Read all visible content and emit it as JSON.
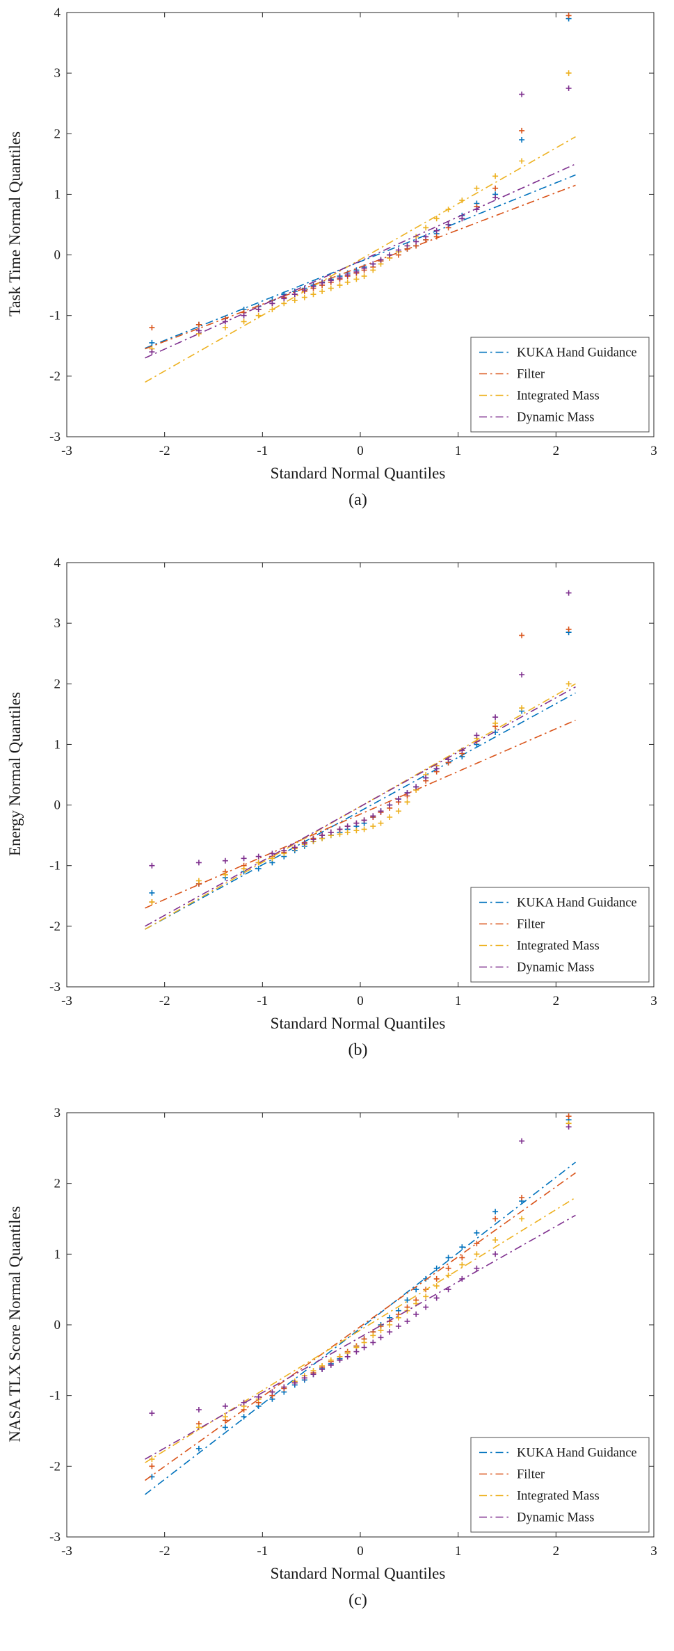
{
  "page": {
    "background": "#ffffff",
    "text_color": "#1a1a1a",
    "axis_color": "#262626"
  },
  "legend": {
    "labels": [
      "KUKA Hand Guidance",
      "Filter",
      "Integrated Mass",
      "Dynamic Mass"
    ],
    "position": "bottom-right"
  },
  "colors": {
    "kuka_hand_guidance": "#0072BD",
    "filter": "#D95319",
    "integrated_mass": "#EDB120",
    "dynamic_mass": "#7E2F8E"
  },
  "chart_data": [
    {
      "id": "a",
      "type": "scatter",
      "caption": "(a)",
      "xlabel": "Standard Normal Quantiles",
      "ylabel": "Task Time Normal Quantiles",
      "xlim": [
        -3,
        3
      ],
      "ylim": [
        -3,
        4
      ],
      "xticks": [
        -3,
        -2,
        -1,
        0,
        1,
        2,
        3
      ],
      "yticks": [
        -3,
        -2,
        -1,
        0,
        1,
        2,
        3,
        4
      ],
      "grid": false,
      "marker": "+",
      "line_style": "dash-dot",
      "legend_position": "bottom-right",
      "x": [
        -2.13,
        -1.65,
        -1.38,
        -1.19,
        -1.04,
        -0.9,
        -0.78,
        -0.67,
        -0.57,
        -0.48,
        -0.39,
        -0.3,
        -0.21,
        -0.13,
        -0.04,
        0.04,
        0.13,
        0.21,
        0.3,
        0.39,
        0.48,
        0.57,
        0.67,
        0.78,
        0.9,
        1.04,
        1.19,
        1.38,
        1.65,
        2.13
      ],
      "series": [
        {
          "name": "KUKA Hand Guidance",
          "color": "#0072BD",
          "y": [
            -1.45,
            -1.15,
            -1.05,
            -0.9,
            -0.85,
            -0.75,
            -0.65,
            -0.6,
            -0.55,
            -0.5,
            -0.45,
            -0.4,
            -0.35,
            -0.3,
            -0.25,
            -0.2,
            -0.15,
            -0.1,
            0,
            0.05,
            0.1,
            0.15,
            0.25,
            0.35,
            0.5,
            0.65,
            0.85,
            1.0,
            1.9,
            3.9
          ],
          "fit_line": {
            "x": [
              -2.2,
              2.2
            ],
            "y": [
              -1.54,
              1.32
            ]
          }
        },
        {
          "name": "Filter",
          "color": "#D95319",
          "y": [
            -1.2,
            -1.15,
            -1.05,
            -0.95,
            -0.9,
            -0.8,
            -0.7,
            -0.65,
            -0.6,
            -0.55,
            -0.5,
            -0.45,
            -0.4,
            -0.35,
            -0.3,
            -0.25,
            -0.2,
            -0.1,
            -0.05,
            0,
            0.1,
            0.15,
            0.25,
            0.3,
            0.45,
            0.6,
            0.8,
            1.1,
            2.05,
            3.95
          ],
          "fit_line": {
            "x": [
              -2.2,
              2.2
            ],
            "y": [
              -1.55,
              1.15
            ]
          }
        },
        {
          "name": "Integrated Mass",
          "color": "#EDB120",
          "y": [
            -1.55,
            -1.3,
            -1.2,
            -1.1,
            -1.0,
            -0.9,
            -0.8,
            -0.75,
            -0.7,
            -0.65,
            -0.6,
            -0.55,
            -0.5,
            -0.45,
            -0.4,
            -0.35,
            -0.25,
            -0.15,
            -0.05,
            0.05,
            0.15,
            0.3,
            0.45,
            0.6,
            0.75,
            0.9,
            1.1,
            1.3,
            1.55,
            3.0
          ],
          "fit_line": {
            "x": [
              -2.2,
              2.2
            ],
            "y": [
              -2.1,
              1.95
            ]
          }
        },
        {
          "name": "Dynamic Mass",
          "color": "#7E2F8E",
          "y": [
            -1.6,
            -1.25,
            -1.1,
            -1.0,
            -0.9,
            -0.8,
            -0.72,
            -0.65,
            -0.58,
            -0.52,
            -0.46,
            -0.42,
            -0.38,
            -0.33,
            -0.28,
            -0.22,
            -0.15,
            -0.08,
            0,
            0.08,
            0.15,
            0.22,
            0.3,
            0.4,
            0.5,
            0.6,
            0.75,
            0.95,
            2.65,
            2.75
          ],
          "fit_line": {
            "x": [
              -2.2,
              2.2
            ],
            "y": [
              -1.7,
              1.5
            ]
          }
        }
      ]
    },
    {
      "id": "b",
      "type": "scatter",
      "caption": "(b)",
      "xlabel": "Standard Normal Quantiles",
      "ylabel": "Energy Normal Quantiles",
      "xlim": [
        -3,
        3
      ],
      "ylim": [
        -3,
        4
      ],
      "xticks": [
        -3,
        -2,
        -1,
        0,
        1,
        2,
        3
      ],
      "yticks": [
        -3,
        -2,
        -1,
        0,
        1,
        2,
        3,
        4
      ],
      "grid": false,
      "marker": "+",
      "line_style": "dash-dot",
      "legend_position": "bottom-right",
      "x": [
        -2.13,
        -1.65,
        -1.38,
        -1.19,
        -1.04,
        -0.9,
        -0.78,
        -0.67,
        -0.57,
        -0.48,
        -0.39,
        -0.3,
        -0.21,
        -0.13,
        -0.04,
        0.04,
        0.13,
        0.21,
        0.3,
        0.39,
        0.48,
        0.57,
        0.67,
        0.78,
        0.9,
        1.04,
        1.19,
        1.38,
        1.65,
        2.13
      ],
      "series": [
        {
          "name": "KUKA Hand Guidance",
          "color": "#0072BD",
          "y": [
            -1.45,
            -1.3,
            -1.2,
            -1.1,
            -1.05,
            -0.95,
            -0.85,
            -0.75,
            -0.68,
            -0.6,
            -0.55,
            -0.5,
            -0.45,
            -0.4,
            -0.35,
            -0.3,
            -0.2,
            -0.1,
            0,
            0.1,
            0.2,
            0.3,
            0.45,
            0.6,
            0.7,
            0.8,
            1.0,
            1.2,
            1.55,
            2.85
          ],
          "fit_line": {
            "x": [
              -2.2,
              2.2
            ],
            "y": [
              -2.05,
              1.85
            ]
          }
        },
        {
          "name": "Filter",
          "color": "#D95319",
          "y": [
            -1.6,
            -1.3,
            -1.1,
            -1.0,
            -0.95,
            -0.85,
            -0.78,
            -0.7,
            -0.62,
            -0.55,
            -0.5,
            -0.45,
            -0.4,
            -0.35,
            -0.3,
            -0.25,
            -0.2,
            -0.12,
            -0.05,
            0.05,
            0.15,
            0.25,
            0.4,
            0.55,
            0.7,
            0.85,
            1.05,
            1.3,
            2.8,
            2.9
          ],
          "fit_line": {
            "x": [
              -2.2,
              2.2
            ],
            "y": [
              -1.7,
              1.4
            ]
          }
        },
        {
          "name": "Integrated Mass",
          "color": "#EDB120",
          "y": [
            -1.6,
            -1.25,
            -1.15,
            -1.05,
            -0.95,
            -0.88,
            -0.8,
            -0.72,
            -0.65,
            -0.6,
            -0.55,
            -0.5,
            -0.48,
            -0.45,
            -0.42,
            -0.4,
            -0.35,
            -0.3,
            -0.2,
            -0.1,
            0.05,
            0.25,
            0.5,
            0.65,
            0.75,
            0.9,
            1.1,
            1.35,
            1.6,
            2.0
          ],
          "fit_line": {
            "x": [
              -2.2,
              2.2
            ],
            "y": [
              -2.05,
              2.0
            ]
          }
        },
        {
          "name": "Dynamic Mass",
          "color": "#7E2F8E",
          "y": [
            -1.0,
            -0.95,
            -0.92,
            -0.88,
            -0.85,
            -0.8,
            -0.75,
            -0.7,
            -0.63,
            -0.57,
            -0.5,
            -0.45,
            -0.4,
            -0.35,
            -0.3,
            -0.25,
            -0.18,
            -0.1,
            0,
            0.1,
            0.2,
            0.3,
            0.45,
            0.6,
            0.75,
            0.9,
            1.15,
            1.45,
            2.15,
            3.5
          ],
          "fit_line": {
            "x": [
              -2.2,
              2.2
            ],
            "y": [
              -2.0,
              1.95
            ]
          }
        }
      ]
    },
    {
      "id": "c",
      "type": "scatter",
      "caption": "(c)",
      "xlabel": "Standard Normal Quantiles",
      "ylabel": "NASA TLX Score Normal Quantiles",
      "xlim": [
        -3,
        3
      ],
      "ylim": [
        -3,
        3
      ],
      "xticks": [
        -3,
        -2,
        -1,
        0,
        1,
        2,
        3
      ],
      "yticks": [
        -3,
        -2,
        -1,
        0,
        1,
        2,
        3
      ],
      "grid": false,
      "marker": "+",
      "line_style": "dash-dot",
      "legend_position": "bottom-right",
      "x": [
        -2.13,
        -1.65,
        -1.38,
        -1.19,
        -1.04,
        -0.9,
        -0.78,
        -0.67,
        -0.57,
        -0.48,
        -0.39,
        -0.3,
        -0.21,
        -0.13,
        -0.04,
        0.04,
        0.13,
        0.21,
        0.3,
        0.39,
        0.48,
        0.57,
        0.67,
        0.78,
        0.9,
        1.04,
        1.19,
        1.38,
        1.65,
        2.13
      ],
      "series": [
        {
          "name": "KUKA Hand Guidance",
          "color": "#0072BD",
          "y": [
            -2.15,
            -1.75,
            -1.45,
            -1.3,
            -1.15,
            -1.05,
            -0.95,
            -0.85,
            -0.78,
            -0.7,
            -0.62,
            -0.55,
            -0.48,
            -0.4,
            -0.3,
            -0.2,
            -0.1,
            0,
            0.1,
            0.2,
            0.35,
            0.5,
            0.65,
            0.8,
            0.95,
            1.1,
            1.3,
            1.6,
            1.75,
            2.9
          ],
          "fit_line": {
            "x": [
              -2.2,
              2.2
            ],
            "y": [
              -2.4,
              2.3
            ]
          }
        },
        {
          "name": "Filter",
          "color": "#D95319",
          "y": [
            -2.0,
            -1.4,
            -1.35,
            -1.2,
            -1.1,
            -1.0,
            -0.9,
            -0.82,
            -0.75,
            -0.68,
            -0.6,
            -0.52,
            -0.45,
            -0.38,
            -0.3,
            -0.2,
            -0.1,
            -0.02,
            0.05,
            0.15,
            0.25,
            0.35,
            0.5,
            0.65,
            0.8,
            0.95,
            1.15,
            1.5,
            1.8,
            2.95
          ],
          "fit_line": {
            "x": [
              -2.2,
              2.2
            ],
            "y": [
              -2.2,
              2.15
            ]
          }
        },
        {
          "name": "Integrated Mass",
          "color": "#EDB120",
          "y": [
            -1.9,
            -1.45,
            -1.3,
            -1.15,
            -1.05,
            -0.95,
            -0.88,
            -0.8,
            -0.72,
            -0.65,
            -0.58,
            -0.5,
            -0.45,
            -0.4,
            -0.32,
            -0.25,
            -0.15,
            -0.08,
            0,
            0.1,
            0.2,
            0.3,
            0.4,
            0.55,
            0.7,
            0.85,
            1.0,
            1.2,
            1.5,
            2.85
          ],
          "fit_line": {
            "x": [
              -2.2,
              2.2
            ],
            "y": [
              -1.95,
              1.8
            ]
          }
        },
        {
          "name": "Dynamic Mass",
          "color": "#7E2F8E",
          "y": [
            -1.25,
            -1.2,
            -1.15,
            -1.1,
            -1.02,
            -0.95,
            -0.88,
            -0.82,
            -0.75,
            -0.7,
            -0.63,
            -0.57,
            -0.5,
            -0.45,
            -0.38,
            -0.32,
            -0.25,
            -0.18,
            -0.1,
            -0.02,
            0.05,
            0.15,
            0.25,
            0.38,
            0.5,
            0.65,
            0.8,
            1.0,
            2.6,
            2.8
          ],
          "fit_line": {
            "x": [
              -2.2,
              2.2
            ],
            "y": [
              -1.9,
              1.55
            ]
          }
        }
      ]
    }
  ]
}
